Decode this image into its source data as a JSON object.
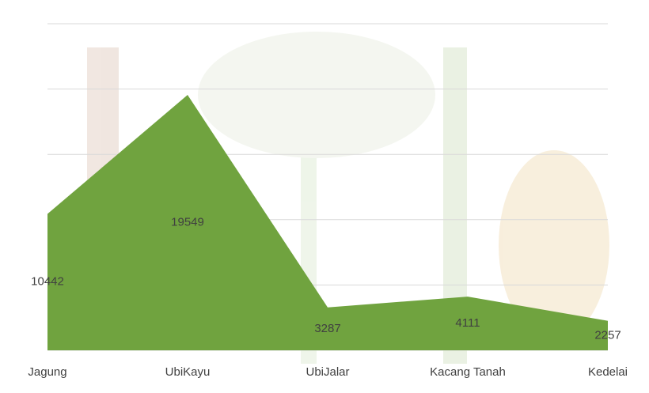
{
  "chart_data": {
    "type": "area",
    "categories": [
      "Jagung",
      "UbiKayu",
      "UbiJalar",
      "Kacang Tanah",
      "Kedelai"
    ],
    "values": [
      10442,
      19549,
      3287,
      4111,
      2257
    ],
    "color": "#70a33f",
    "ylim": [
      0,
      25000
    ],
    "yticks": [
      0,
      5000,
      10000,
      15000,
      20000,
      25000
    ],
    "grid": true
  }
}
